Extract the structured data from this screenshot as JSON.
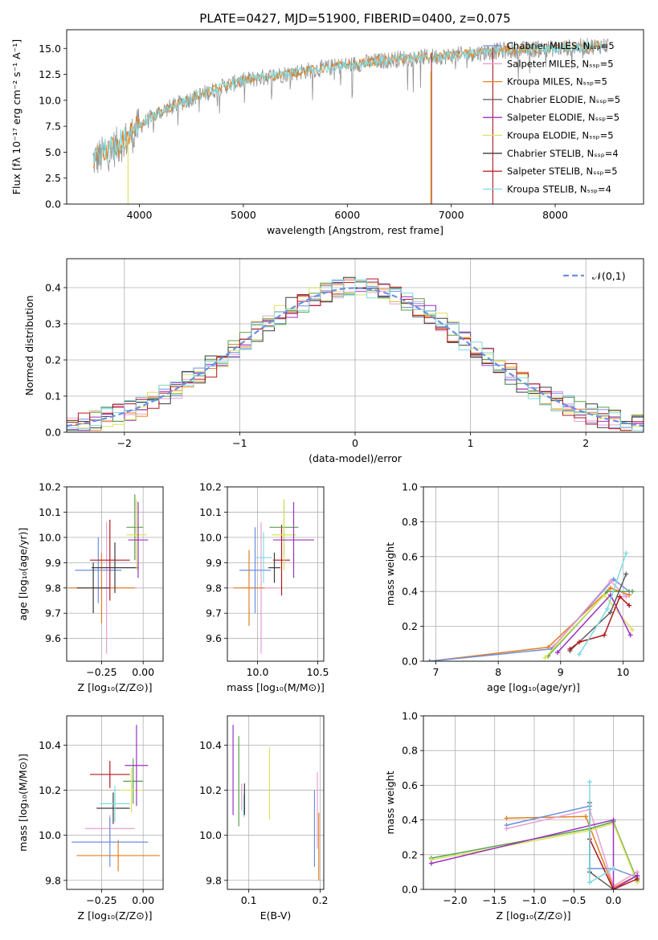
{
  "title": "PLATE=0427, MJD=51900, FIBERID=0400, z=0.075",
  "colors": [
    "#e7a0d3",
    "#e37f1f",
    "#5c5c5c",
    "#9b30c2",
    "#dce25a",
    "#3b3b3b",
    "#b3171c",
    "#7fdbe0",
    "#6d8fdf",
    "#59a149",
    "#929292"
  ],
  "chart_data": [
    {
      "id": "spectrum",
      "type": "line",
      "title": "PLATE=0427, MJD=51900, FIBERID=0400, z=0.075",
      "xlabel": "wavelength [Angstrom, rest frame]",
      "ylabel": "Flux [fλ 10⁻¹⁷ erg cm⁻² s⁻¹ A⁻¹]",
      "xlim": [
        3300,
        8850
      ],
      "ylim": [
        0,
        16.8
      ],
      "xticks": [
        4000,
        5000,
        6000,
        7000,
        8000
      ],
      "yticks": [
        0.0,
        2.5,
        5.0,
        7.5,
        10.0,
        12.5,
        15.0
      ],
      "legend_position": "top-right",
      "legend": [
        "Chabrier MILES, N_SSP=5",
        "Salpeter MILES, N_SSP=5",
        "Kroupa MILES, N_SSP=5",
        "Chabrier ELODIE, N_SSP=5",
        "Salpeter ELODIE, N_SSP=5",
        "Kroupa ELODIE, N_SSP=5",
        "Chabrier STELIB, N_SSP=4",
        "Salpeter STELIB, N_SSP=5",
        "Kroupa STELIB, N_SSP=4"
      ],
      "legend_colors": [
        "#6d8fdf",
        "#e7a0d3",
        "#e37f1f",
        "#5c5c5c",
        "#9b30c2",
        "#dce25a",
        "#3b3b3b",
        "#b3171c",
        "#7fdbe0"
      ],
      "continuum": [
        [
          3550,
          4.2
        ],
        [
          3700,
          5.0
        ],
        [
          3900,
          6.4
        ],
        [
          4000,
          7.5
        ],
        [
          4200,
          8.9
        ],
        [
          4500,
          10.2
        ],
        [
          4800,
          11.3
        ],
        [
          5000,
          11.9
        ],
        [
          5500,
          12.7
        ],
        [
          6000,
          13.4
        ],
        [
          6500,
          14.0
        ],
        [
          7000,
          14.3
        ],
        [
          7500,
          14.8
        ],
        [
          8000,
          15.0
        ],
        [
          8500,
          15.3
        ]
      ],
      "noise_amplitude": 1.2,
      "spectrum_color": "#929292",
      "model_color": "#7fdbe0"
    },
    {
      "id": "residuals",
      "type": "histogram",
      "xlabel": "(data-model)/error",
      "ylabel": "Normed distribution",
      "xlim": [
        -2.5,
        2.5
      ],
      "ylim": [
        0,
        0.48
      ],
      "xticks": [
        -2,
        -1,
        0,
        1,
        2
      ],
      "yticks": [
        0.0,
        0.1,
        0.2,
        0.3,
        0.4
      ],
      "bin_width": 0.1,
      "legend_position": "top-right",
      "normal_curve_label": "𝒩(0,1)",
      "normal_curve_color": "#6d8fdf",
      "n_series": 9
    },
    {
      "id": "age-vs-Z",
      "type": "errorbar",
      "xlabel": "Z [log₁₀(Z/Z⊙)]",
      "ylabel": "age  [log₁₀(age/yr)]",
      "xlim": [
        -0.46,
        0.12
      ],
      "ylim": [
        9.51,
        10.2
      ],
      "xticks": [
        -0.25,
        0.0
      ],
      "yticks": [
        9.6,
        9.7,
        9.8,
        9.9,
        10.0,
        10.1,
        10.2
      ],
      "points": [
        {
          "x": -0.22,
          "y": 9.8,
          "xerr": 0.18,
          "yerr": 0.26,
          "color": "#e7a0d3"
        },
        {
          "x": -0.25,
          "y": 9.8,
          "xerr": 0.2,
          "yerr": 0.14,
          "color": "#e37f1f"
        },
        {
          "x": -0.27,
          "y": 9.87,
          "xerr": 0.14,
          "yerr": 0.13,
          "color": "#6d8fdf"
        },
        {
          "x": -0.3,
          "y": 9.8,
          "xerr": 0.1,
          "yerr": 0.1,
          "color": "#3b3b3b"
        },
        {
          "x": -0.2,
          "y": 9.91,
          "xerr": 0.12,
          "yerr": 0.16,
          "color": "#b3171c"
        },
        {
          "x": -0.17,
          "y": 9.88,
          "xerr": 0.14,
          "yerr": 0.1,
          "color": "#3b3b3b"
        },
        {
          "x": -0.05,
          "y": 10.04,
          "xerr": 0.05,
          "yerr": 0.13,
          "color": "#59a149"
        },
        {
          "x": -0.04,
          "y": 10.01,
          "xerr": 0.06,
          "yerr": 0.14,
          "color": "#dce25a"
        },
        {
          "x": -0.03,
          "y": 9.99,
          "xerr": 0.06,
          "yerr": 0.15,
          "color": "#9b30c2"
        }
      ]
    },
    {
      "id": "age-vs-mass",
      "type": "errorbar",
      "xlabel": "mass [log₁₀(M/M⊙)]",
      "ylabel": "",
      "xlim": [
        9.75,
        10.55
      ],
      "ylim": [
        9.51,
        10.2
      ],
      "xticks": [
        10.0,
        10.5
      ],
      "yticks": [
        9.6,
        9.7,
        9.8,
        9.9,
        10.0,
        10.1,
        10.2
      ],
      "points": [
        {
          "x": 10.03,
          "y": 9.8,
          "xerr": 0.15,
          "yerr": 0.26,
          "color": "#e7a0d3"
        },
        {
          "x": 9.93,
          "y": 9.8,
          "xerr": 0.13,
          "yerr": 0.15,
          "color": "#e37f1f"
        },
        {
          "x": 9.98,
          "y": 9.87,
          "xerr": 0.13,
          "yerr": 0.17,
          "color": "#6d8fdf"
        },
        {
          "x": 10.05,
          "y": 9.92,
          "xerr": 0.07,
          "yerr": 0.1,
          "color": "#7fdbe0"
        },
        {
          "x": 10.14,
          "y": 9.88,
          "xerr": 0.05,
          "yerr": 0.06,
          "color": "#3b3b3b"
        },
        {
          "x": 10.2,
          "y": 9.91,
          "xerr": 0.07,
          "yerr": 0.14,
          "color": "#b3171c"
        },
        {
          "x": 10.22,
          "y": 10.04,
          "xerr": 0.12,
          "yerr": 0.11,
          "color": "#59a149"
        },
        {
          "x": 10.22,
          "y": 10.01,
          "xerr": 0.1,
          "yerr": 0.14,
          "color": "#dce25a"
        },
        {
          "x": 10.3,
          "y": 9.99,
          "xerr": 0.17,
          "yerr": 0.15,
          "color": "#9b30c2"
        }
      ]
    },
    {
      "id": "massweight-vs-age",
      "type": "line",
      "xlabel": "age  [log₁₀(age/yr)]",
      "ylabel": "mass weight",
      "xlim": [
        6.8,
        10.33
      ],
      "ylim": [
        0,
        1.0
      ],
      "xticks": [
        7,
        8,
        9,
        10
      ],
      "yticks": [
        0.0,
        0.2,
        0.4,
        0.6,
        0.8,
        1.0
      ],
      "series": [
        {
          "color": "#e37f1f",
          "points": [
            [
              6.9,
              0.0
            ],
            [
              8.8,
              0.08
            ],
            [
              9.8,
              0.42
            ],
            [
              10.1,
              0.38
            ]
          ]
        },
        {
          "color": "#6d8fdf",
          "points": [
            [
              6.9,
              0.0
            ],
            [
              8.85,
              0.07
            ],
            [
              9.85,
              0.47
            ],
            [
              10.1,
              0.4
            ]
          ]
        },
        {
          "color": "#e7a0d3",
          "points": [
            [
              8.9,
              0.09
            ],
            [
              9.8,
              0.46
            ],
            [
              10.05,
              0.37
            ]
          ]
        },
        {
          "color": "#59a149",
          "points": [
            [
              8.8,
              0.03
            ],
            [
              9.75,
              0.4
            ],
            [
              10.15,
              0.4
            ]
          ]
        },
        {
          "color": "#dce25a",
          "points": [
            [
              8.75,
              0.02
            ],
            [
              9.7,
              0.38
            ],
            [
              10.15,
              0.18
            ]
          ]
        },
        {
          "color": "#9b30c2",
          "points": [
            [
              8.95,
              0.05
            ],
            [
              9.8,
              0.38
            ],
            [
              10.12,
              0.15
            ]
          ]
        },
        {
          "color": "#5c5c5c",
          "points": [
            [
              9.15,
              0.06
            ],
            [
              9.8,
              0.28
            ],
            [
              10.05,
              0.5
            ]
          ]
        },
        {
          "color": "#b3171c",
          "points": [
            [
              9.15,
              0.07
            ],
            [
              9.3,
              0.11
            ],
            [
              9.7,
              0.15
            ],
            [
              9.95,
              0.37
            ],
            [
              10.1,
              0.32
            ]
          ]
        },
        {
          "color": "#7fdbe0",
          "points": [
            [
              9.3,
              0.04
            ],
            [
              9.75,
              0.3
            ],
            [
              10.05,
              0.62
            ]
          ]
        }
      ]
    },
    {
      "id": "mass-vs-Z",
      "type": "errorbar",
      "xlabel": "Z [log₁₀(Z/Z⊙)]",
      "ylabel": "mass [log₁₀(M/M⊙)]",
      "xlim": [
        -0.46,
        0.12
      ],
      "ylim": [
        9.76,
        10.53
      ],
      "xticks": [
        -0.25,
        0.0
      ],
      "yticks": [
        9.8,
        10.0,
        10.2,
        10.4
      ],
      "points": [
        {
          "x": -0.2,
          "y": 10.03,
          "xerr": 0.15,
          "yerr": 0.06,
          "color": "#e7a0d3"
        },
        {
          "x": -0.15,
          "y": 9.91,
          "xerr": 0.25,
          "yerr": 0.07,
          "color": "#e37f1f"
        },
        {
          "x": -0.2,
          "y": 9.97,
          "xerr": 0.23,
          "yerr": 0.11,
          "color": "#6d8fdf"
        },
        {
          "x": -0.18,
          "y": 10.12,
          "xerr": 0.1,
          "yerr": 0.07,
          "color": "#3b3b3b"
        },
        {
          "x": -0.2,
          "y": 10.27,
          "xerr": 0.12,
          "yerr": 0.06,
          "color": "#b3171c"
        },
        {
          "x": -0.17,
          "y": 10.14,
          "xerr": 0.09,
          "yerr": 0.08,
          "color": "#7fdbe0"
        },
        {
          "x": -0.06,
          "y": 10.24,
          "xerr": 0.06,
          "yerr": 0.1,
          "color": "#59a149"
        },
        {
          "x": -0.07,
          "y": 10.2,
          "xerr": 0.07,
          "yerr": 0.1,
          "color": "#dce25a"
        },
        {
          "x": -0.04,
          "y": 10.31,
          "xerr": 0.07,
          "yerr": 0.18,
          "color": "#9b30c2"
        }
      ]
    },
    {
      "id": "mass-vs-EBV",
      "type": "errorbar",
      "xlabel": "E(B-V)",
      "ylabel": "",
      "xlim": [
        0.07,
        0.205
      ],
      "ylim": [
        9.76,
        10.53
      ],
      "xticks": [
        0.1,
        0.2
      ],
      "yticks": [
        9.8,
        10.0,
        10.2,
        10.4
      ],
      "points": [
        {
          "x": 0.078,
          "y": 10.29,
          "yerr": 0.2,
          "color": "#9b30c2"
        },
        {
          "x": 0.086,
          "y": 10.24,
          "yerr": 0.2,
          "color": "#59a149"
        },
        {
          "x": 0.09,
          "y": 10.17,
          "yerr": 0.06,
          "color": "#e7a0d3"
        },
        {
          "x": 0.093,
          "y": 10.13,
          "yerr": 0.05,
          "color": "#7fdbe0"
        },
        {
          "x": 0.094,
          "y": 10.16,
          "yerr": 0.07,
          "color": "#3b3b3b"
        },
        {
          "x": 0.129,
          "y": 10.23,
          "yerr": 0.16,
          "color": "#dce25a"
        },
        {
          "x": 0.192,
          "y": 10.03,
          "yerr": 0.17,
          "color": "#6d8fdf"
        },
        {
          "x": 0.196,
          "y": 10.11,
          "yerr": 0.17,
          "color": "#e7a0d3"
        },
        {
          "x": 0.198,
          "y": 9.95,
          "yerr": 0.15,
          "color": "#e37f1f"
        }
      ]
    },
    {
      "id": "massweight-vs-Z",
      "type": "line",
      "xlabel": "Z [log₁₀(Z/Z⊙)]",
      "ylabel": "mass weight",
      "xlim": [
        -2.4,
        0.38
      ],
      "ylim": [
        0,
        1.0
      ],
      "xticks": [
        -2.0,
        -1.5,
        -1.0,
        -0.5,
        0.0
      ],
      "yticks": [
        0.0,
        0.2,
        0.4,
        0.6,
        0.8,
        1.0
      ],
      "series": [
        {
          "color": "#e37f1f",
          "points": [
            [
              -1.35,
              0.41
            ],
            [
              -0.35,
              0.42
            ],
            [
              0.0,
              0.01
            ],
            [
              0.3,
              0.08
            ]
          ]
        },
        {
          "color": "#6d8fdf",
          "points": [
            [
              -1.35,
              0.37
            ],
            [
              -0.3,
              0.48
            ],
            [
              -0.3,
              0.12
            ],
            [
              0.0,
              0.12
            ],
            [
              0.3,
              0.07
            ]
          ]
        },
        {
          "color": "#e7a0d3",
          "points": [
            [
              -1.35,
              0.35
            ],
            [
              -0.3,
              0.46
            ],
            [
              0.0,
              0.02
            ],
            [
              0.3,
              0.1
            ]
          ]
        },
        {
          "color": "#59a149",
          "points": [
            [
              -2.3,
              0.18
            ],
            [
              -0.3,
              0.35
            ],
            [
              0.0,
              0.39
            ],
            [
              0.3,
              0.05
            ]
          ]
        },
        {
          "color": "#dce25a",
          "points": [
            [
              -2.3,
              0.17
            ],
            [
              -0.3,
              0.34
            ],
            [
              0.0,
              0.38
            ],
            [
              0.3,
              0.04
            ]
          ]
        },
        {
          "color": "#9b30c2",
          "points": [
            [
              -2.3,
              0.15
            ],
            [
              0.0,
              0.4
            ],
            [
              0.0,
              0.0
            ],
            [
              0.3,
              0.08
            ]
          ]
        },
        {
          "color": "#5c5c5c",
          "points": [
            [
              -0.3,
              0.5
            ],
            [
              -0.3,
              0.1
            ],
            [
              0.0,
              0.0
            ]
          ]
        },
        {
          "color": "#b3171c",
          "points": [
            [
              -0.3,
              0.29
            ],
            [
              0.0,
              0.0
            ],
            [
              0.3,
              0.06
            ]
          ]
        },
        {
          "color": "#7fdbe0",
          "points": [
            [
              -0.3,
              0.62
            ],
            [
              -0.3,
              0.04
            ],
            [
              0.0,
              0.12
            ]
          ]
        }
      ]
    }
  ]
}
